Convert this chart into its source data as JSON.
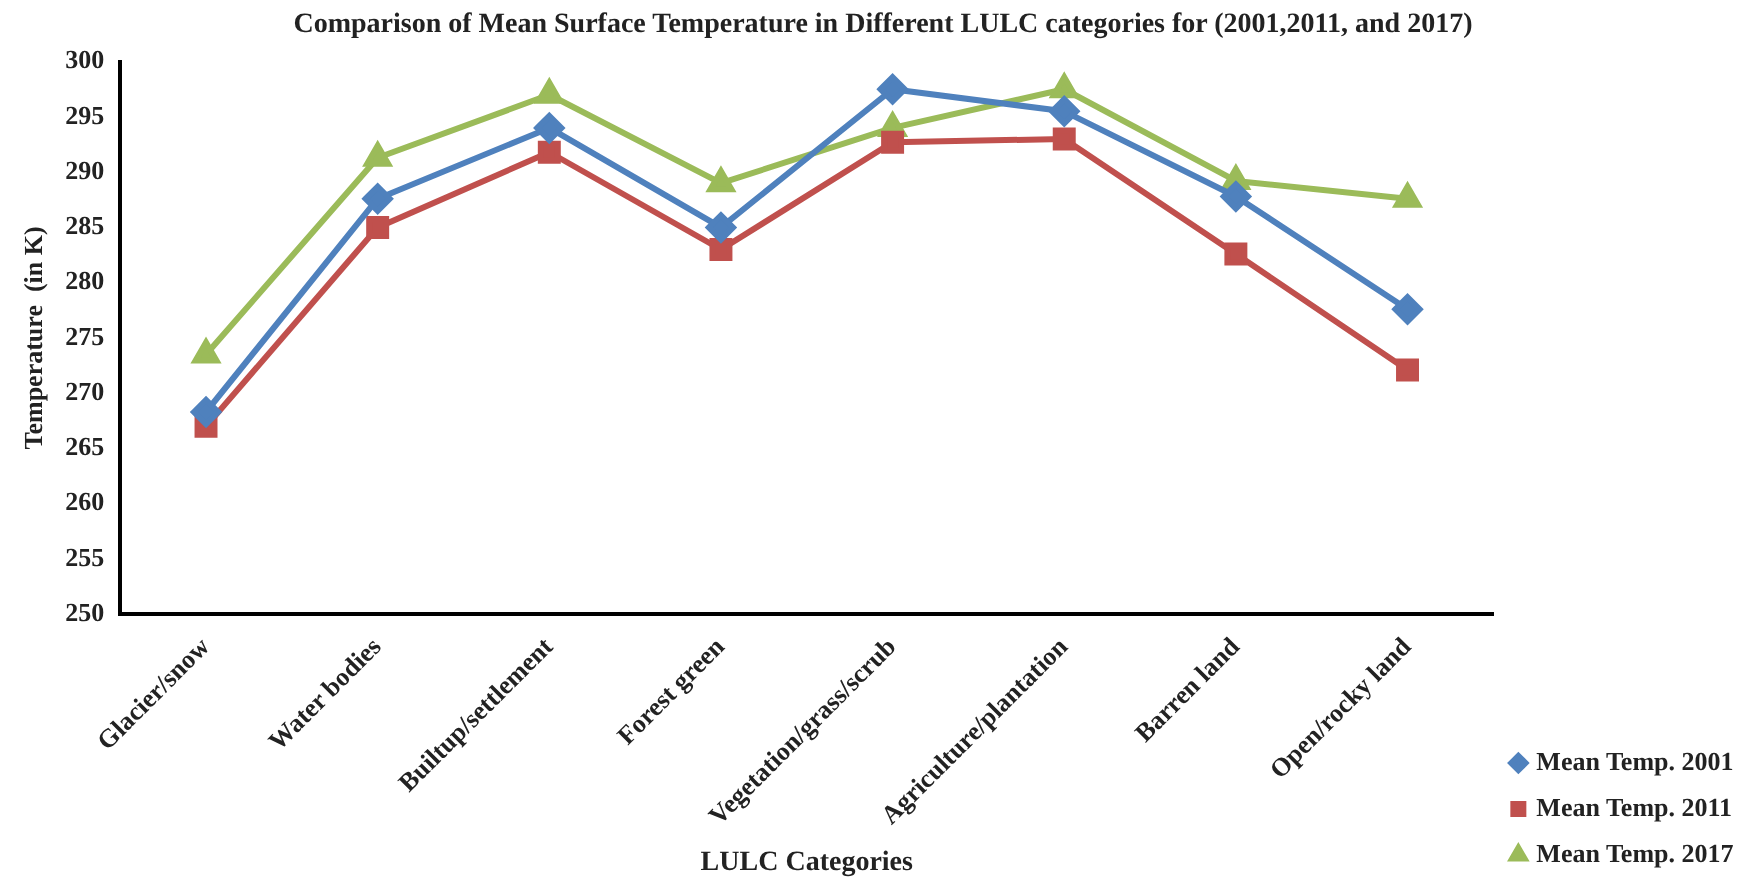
{
  "chart_data": {
    "type": "line",
    "title": "Comparison of Mean Surface Temperature in Different LULC categories for (2001,2011, and 2017)",
    "xlabel": "LULC Categories",
    "ylabel": "Temperature  (in K)",
    "categories": [
      "Glacier/snow",
      "Water bodies",
      "Builtup/settlement",
      "Forest green",
      "Vegetation/grass/scrub",
      "Agriculture/plantation",
      "Barren land",
      "Open/rocky land"
    ],
    "series": [
      {
        "name": "Mean Temp. 2001",
        "color": "#4f81bd",
        "marker": "diamond",
        "values": [
          268.3,
          287.6,
          294,
          285,
          297.5,
          295.5,
          287.8,
          277.6
        ]
      },
      {
        "name": "Mean Temp. 2011",
        "color": "#c0504d",
        "marker": "square",
        "values": [
          267,
          285,
          291.8,
          283,
          292.7,
          293,
          282.6,
          272.1
        ]
      },
      {
        "name": "Mean Temp. 2017",
        "color": "#9bbb59",
        "marker": "triangle",
        "values": [
          273.5,
          291.3,
          297,
          289,
          294,
          297.5,
          289.2,
          287.6
        ]
      }
    ],
    "ylim": [
      250,
      300
    ],
    "yticks": [
      250,
      255,
      260,
      265,
      270,
      275,
      280,
      285,
      290,
      295,
      300
    ],
    "grid": false,
    "legend": "bottom right",
    "line_style": "solid"
  }
}
